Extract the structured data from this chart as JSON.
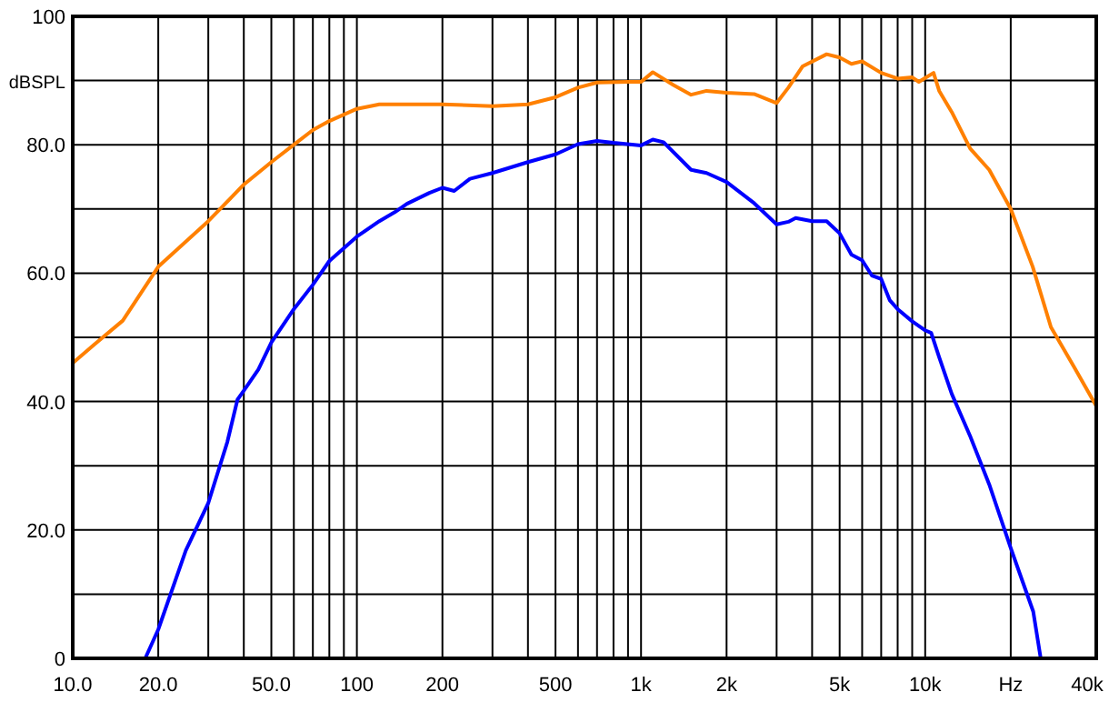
{
  "chart_data": {
    "type": "line",
    "ylabel": "dBSPL",
    "xlabel": "Hz",
    "log": "x",
    "grid": true,
    "marker": "none",
    "line_style": "solid",
    "xlim": [
      10,
      40000
    ],
    "ylim": [
      0,
      100
    ],
    "xticks": [
      {
        "value": 10,
        "label": "10.0"
      },
      {
        "value": 20,
        "label": "20.0"
      },
      {
        "value": 30,
        "label": null
      },
      {
        "value": 40,
        "label": null
      },
      {
        "value": 50,
        "label": "50.0"
      },
      {
        "value": 60,
        "label": null
      },
      {
        "value": 70,
        "label": null
      },
      {
        "value": 80,
        "label": null
      },
      {
        "value": 90,
        "label": null
      },
      100,
      200,
      {
        "value": 300,
        "label": null
      },
      {
        "value": 400,
        "label": null
      },
      500,
      {
        "value": 600,
        "label": null
      },
      {
        "value": 700,
        "label": null
      },
      {
        "value": 800,
        "label": null
      },
      {
        "value": 900,
        "label": null
      },
      {
        "value": 1000,
        "label": "1k"
      },
      {
        "value": 2000,
        "label": "2k"
      },
      {
        "value": 3000,
        "label": null
      },
      {
        "value": 4000,
        "label": null
      },
      {
        "value": 5000,
        "label": "5k"
      },
      {
        "value": 6000,
        "label": null
      },
      {
        "value": 7000,
        "label": null
      },
      {
        "value": 8000,
        "label": null
      },
      {
        "value": 9000,
        "label": null
      },
      {
        "value": 10000,
        "label": "10k"
      },
      {
        "value": 20000,
        "label": null
      },
      {
        "value": 40000,
        "label": "40k"
      }
    ],
    "yticks": [
      0,
      {
        "value": 10,
        "label": null
      },
      {
        "value": 20,
        "label": "20.0"
      },
      {
        "value": 30,
        "label": null
      },
      {
        "value": 40,
        "label": "40.0"
      },
      {
        "value": 50,
        "label": null
      },
      {
        "value": 60,
        "label": "60.0"
      },
      {
        "value": 70,
        "label": null
      },
      {
        "value": 80,
        "label": "80.0"
      },
      {
        "value": 90,
        "label": null
      },
      100
    ],
    "series": [
      {
        "color": "#ff8000",
        "x": [
          10,
          12,
          15,
          20,
          30,
          40,
          50,
          60,
          70,
          80,
          100,
          120,
          200,
          300,
          400,
          500,
          600,
          700,
          900,
          1000,
          1100,
          1300,
          1500,
          1700,
          2000,
          2500,
          3000,
          3300,
          3700,
          4500,
          5000,
          5500,
          6000,
          7000,
          8000,
          9000,
          9500,
          10700,
          11200,
          12400,
          14400,
          16800,
          20000,
          23900,
          27700,
          33300,
          40000
        ],
        "values": [
          46,
          49,
          52.6,
          61,
          68.1,
          73.8,
          77.3,
          80,
          82.3,
          83.7,
          85.6,
          86.3,
          86.3,
          86,
          86.3,
          87.4,
          88.9,
          89.7,
          89.8,
          89.8,
          91.3,
          89.3,
          87.8,
          88.4,
          88.1,
          87.9,
          86.5,
          88.9,
          92.2,
          94.1,
          93.6,
          92.6,
          93,
          91.2,
          90.3,
          90.5,
          89.8,
          91.2,
          88.4,
          85.1,
          79.4,
          76.1,
          70,
          61,
          51.6,
          45.5,
          39.3
        ]
      },
      {
        "color": "#0000ff",
        "x": [
          18,
          20,
          25,
          30,
          35,
          38,
          40,
          45,
          50,
          60,
          70,
          80,
          100,
          120,
          136,
          150,
          180,
          200,
          220,
          250,
          300,
          400,
          500,
          600,
          700,
          800,
          1000,
          1100,
          1200,
          1500,
          1700,
          2000,
          2500,
          3000,
          3300,
          3500,
          4000,
          4500,
          5000,
          5500,
          6000,
          6500,
          7000,
          7500,
          8000,
          9000,
          10000,
          10500,
          11200,
          12400,
          14400,
          16800,
          20000,
          22000,
          24000,
          25500
        ],
        "values": [
          0,
          4.5,
          16.8,
          24.2,
          33.7,
          40.3,
          41.7,
          45,
          49.2,
          54.4,
          58.2,
          61.9,
          65.7,
          68.1,
          69.5,
          70.8,
          72.5,
          73.3,
          72.8,
          74.7,
          75.6,
          77.3,
          78.5,
          80.1,
          80.6,
          80.3,
          79.9,
          80.8,
          80.4,
          76.1,
          75.6,
          74.2,
          70.9,
          67.6,
          68,
          68.6,
          68.1,
          68.1,
          66.2,
          62.9,
          62,
          59.6,
          59.1,
          55.8,
          54.4,
          52.5,
          51.1,
          50.7,
          46.9,
          41.2,
          34.6,
          27.1,
          17.2,
          12,
          7.3,
          0
        ]
      }
    ]
  }
}
